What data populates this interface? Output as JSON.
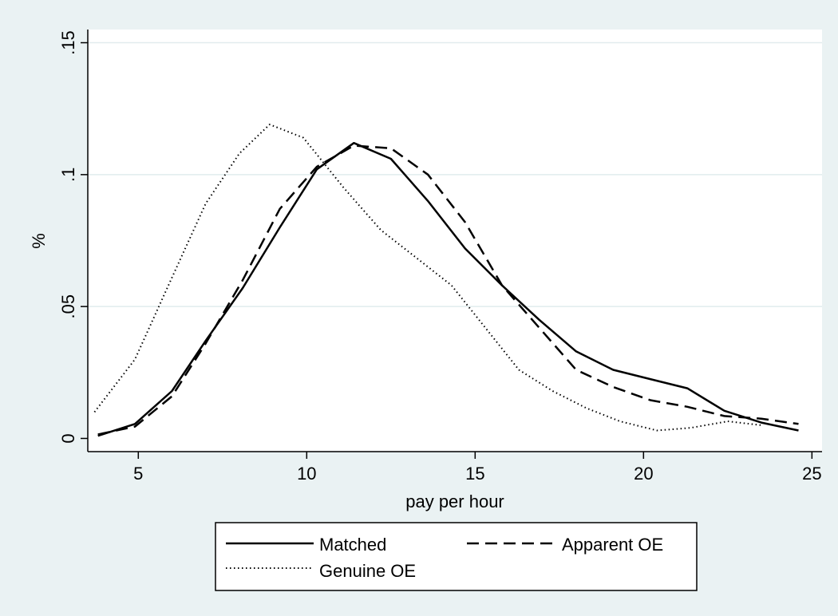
{
  "chart_data": {
    "type": "line",
    "title": "",
    "xlabel": "pay per hour",
    "ylabel": "%",
    "xlim": [
      3.5,
      25.3
    ],
    "ylim": [
      -0.005,
      0.155
    ],
    "x_ticks": [
      5,
      10,
      15,
      20,
      25
    ],
    "x_tick_labels": [
      "5",
      "10",
      "15",
      "20",
      "25"
    ],
    "y_ticks": [
      0,
      0.05,
      0.1,
      0.15
    ],
    "y_tick_labels": [
      "0",
      ".05",
      ".1",
      ".15"
    ],
    "grid": "horizontal",
    "legend_position": "bottom",
    "colors": {
      "background": "#eaf2f3",
      "plot": "#ffffff",
      "grid": "#e1ecee",
      "line": "#000000"
    },
    "series": [
      {
        "name": "Matched",
        "style": "solid",
        "x": [
          3.8,
          4.9,
          6.0,
          7.0,
          8.1,
          9.2,
          10.3,
          11.4,
          12.5,
          13.6,
          14.7,
          15.8,
          16.9,
          18.0,
          19.1,
          20.2,
          21.3,
          22.4,
          23.5,
          24.6
        ],
        "y": [
          0.001,
          0.0055,
          0.018,
          0.037,
          0.057,
          0.08,
          0.102,
          0.112,
          0.106,
          0.09,
          0.072,
          0.058,
          0.045,
          0.033,
          0.026,
          0.0225,
          0.019,
          0.0105,
          0.006,
          0.003
        ]
      },
      {
        "name": "Apparent OE",
        "style": "dashed",
        "x": [
          3.8,
          4.9,
          6.0,
          7.0,
          8.1,
          9.2,
          10.3,
          11.4,
          12.5,
          13.6,
          14.7,
          15.8,
          16.9,
          18.0,
          19.1,
          20.2,
          21.3,
          22.4,
          23.5,
          24.6
        ],
        "y": [
          0.0015,
          0.0045,
          0.016,
          0.036,
          0.06,
          0.087,
          0.103,
          0.111,
          0.11,
          0.1,
          0.082,
          0.058,
          0.042,
          0.026,
          0.0195,
          0.0145,
          0.012,
          0.0085,
          0.0075,
          0.0055
        ]
      },
      {
        "name": "Genuine OE",
        "style": "dotted",
        "x": [
          3.7,
          4.9,
          6.0,
          7.0,
          8.0,
          8.9,
          9.9,
          11.1,
          12.2,
          13.3,
          14.3,
          15.3,
          16.3,
          17.3,
          18.3,
          19.3,
          20.4,
          21.4,
          22.5,
          23.5
        ],
        "y": [
          0.01,
          0.03,
          0.061,
          0.089,
          0.108,
          0.119,
          0.114,
          0.095,
          0.079,
          0.068,
          0.058,
          0.042,
          0.026,
          0.018,
          0.0115,
          0.0065,
          0.003,
          0.004,
          0.0065,
          0.005
        ]
      }
    ]
  }
}
